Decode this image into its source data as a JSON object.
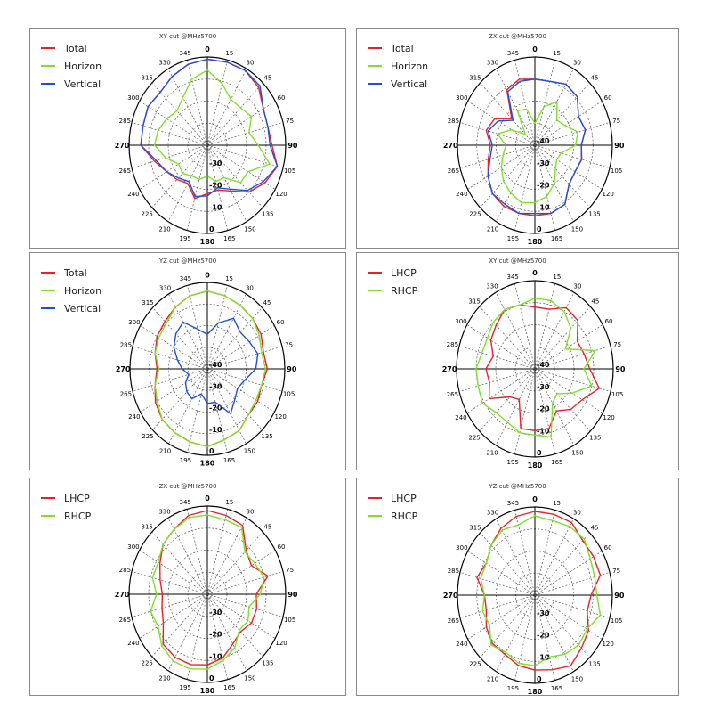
{
  "angle_labels": [
    "0",
    "15",
    "30",
    "45",
    "60",
    "75",
    "90",
    "105",
    "120",
    "135",
    "150",
    "165",
    "180",
    "195",
    "210",
    "225",
    "240",
    "265",
    "270",
    "285",
    "300",
    "315",
    "330",
    "345"
  ],
  "colors": {
    "Total": "#e8202a",
    "Horizon": "#7fe02a",
    "Vertical": "#1f4fd8",
    "LHCP": "#e8202a",
    "RHCP": "#7fe02a"
  },
  "chart_data": [
    {
      "type": "polar-line",
      "title": "XY cut @MHz5700",
      "radial_ticks": [
        "0",
        "-10",
        "-20",
        "-30"
      ],
      "series": [
        {
          "name": "Total",
          "values": [
            -1,
            -1,
            -1,
            -3,
            -7,
            -8,
            -7,
            -3,
            -6,
            -10,
            -16,
            -19,
            -18,
            -15,
            -20,
            -18,
            -16,
            -12,
            -6,
            -6,
            -5,
            -6,
            -4,
            -2
          ]
        },
        {
          "name": "Horizon",
          "values": [
            -6,
            -11,
            -16,
            -16,
            -14,
            -18,
            -14,
            -7,
            -16,
            -16,
            -23,
            -23,
            -26,
            -24,
            -24,
            -22,
            -23,
            -18,
            -13,
            -14,
            -16,
            -18,
            -15,
            -9
          ]
        },
        {
          "name": "Vertical",
          "values": [
            -1,
            -1,
            -1,
            -2,
            -7,
            -8,
            -8,
            -3,
            -7,
            -11,
            -17,
            -20,
            -17,
            -16,
            -21,
            -19,
            -16,
            -13,
            -6,
            -6,
            -5,
            -6,
            -4,
            -2
          ]
        }
      ]
    },
    {
      "type": "polar-line",
      "title": "ZX cut @MHz5700",
      "radial_ticks": [
        "0",
        "-10",
        "-20",
        "-30",
        "-40"
      ],
      "series": [
        {
          "name": "Total",
          "values": [
            -10,
            -10,
            -8,
            -9,
            -14,
            -13,
            -16,
            -15,
            -16,
            -15,
            -9,
            -8,
            -8,
            -8,
            -8,
            -9,
            -12,
            -15,
            -17,
            -14,
            -16,
            -23,
            -11,
            -9
          ]
        },
        {
          "name": "Horizon",
          "values": [
            -30,
            -22,
            -17,
            -24,
            -22,
            -17,
            -19,
            -26,
            -27,
            -25,
            -20,
            -16,
            -14,
            -13,
            -15,
            -17,
            -20,
            -23,
            -25,
            -20,
            -26,
            -33,
            -22,
            -23
          ]
        },
        {
          "name": "Vertical",
          "values": [
            -10,
            -10,
            -8,
            -9,
            -14,
            -13,
            -16,
            -15,
            -16,
            -15,
            -9,
            -8,
            -9,
            -8,
            -9,
            -9,
            -12,
            -16,
            -18,
            -15,
            -18,
            -24,
            -12,
            -10
          ]
        }
      ]
    },
    {
      "type": "polar-line",
      "title": "YZ cut @MHz5700",
      "radial_ticks": [
        "0",
        "-10",
        "-20",
        "-30",
        "-40"
      ],
      "series": [
        {
          "name": "Total",
          "values": [
            -4,
            -5,
            -6,
            -7,
            -8,
            -10,
            -9,
            -11,
            -10,
            -10,
            -7,
            -6,
            -4,
            -5,
            -6,
            -7,
            -9,
            -12,
            -14,
            -12,
            -10,
            -9,
            -7,
            -5
          ]
        },
        {
          "name": "Horizon",
          "values": [
            -4,
            -5,
            -6,
            -7,
            -9,
            -11,
            -10,
            -11,
            -11,
            -10,
            -7,
            -6,
            -4,
            -5,
            -6,
            -7,
            -10,
            -12,
            -15,
            -12,
            -11,
            -10,
            -7,
            -5
          ]
        },
        {
          "name": "Vertical",
          "values": [
            -24,
            -18,
            -13,
            -16,
            -15,
            -13,
            -15,
            -20,
            -22,
            -20,
            -16,
            -24,
            -24,
            -28,
            -24,
            -25,
            -27,
            -30,
            -27,
            -24,
            -20,
            -17,
            -15,
            -21
          ]
        }
      ]
    },
    {
      "type": "polar-line",
      "title": "XY cut @MHz5700",
      "radial_ticks": [
        "0",
        "-10",
        "-20",
        "-30",
        "-40"
      ],
      "series": [
        {
          "name": "LHCP",
          "values": [
            -12,
            -12,
            -8,
            -9,
            -15,
            -14,
            -12,
            -6,
            -12,
            -14,
            -18,
            -12,
            -12,
            -12,
            -24,
            -22,
            -13,
            -16,
            -15,
            -18,
            -14,
            -12,
            -9,
            -10
          ]
        },
        {
          "name": "RHCP",
          "values": [
            -8,
            -8,
            -10,
            -14,
            -22,
            -8,
            -15,
            -10,
            -18,
            -24,
            -22,
            -8,
            -10,
            -10,
            -12,
            -12,
            -9,
            -10,
            -10,
            -12,
            -12,
            -10,
            -9,
            -10
          ]
        }
      ]
    },
    {
      "type": "polar-line",
      "title": "ZX cut @MHz5700",
      "radial_ticks": [
        "0",
        "-10",
        "-20",
        "-30"
      ],
      "series": [
        {
          "name": "LHCP",
          "values": [
            -2,
            -3,
            -4,
            -12,
            -14,
            -8,
            -15,
            -14,
            -14,
            -16,
            -14,
            -10,
            -8,
            -7,
            -7,
            -8,
            -14,
            -16,
            -17,
            -15,
            -12,
            -8,
            -6,
            -3
          ]
        },
        {
          "name": "RHCP",
          "values": [
            -4,
            -5,
            -5,
            -13,
            -12,
            -10,
            -13,
            -18,
            -16,
            -17,
            -12,
            -9,
            -6,
            -5,
            -5,
            -7,
            -11,
            -10,
            -14,
            -11,
            -11,
            -8,
            -6,
            -4
          ]
        }
      ]
    },
    {
      "type": "polar-line",
      "title": "YZ cut @MHz5700",
      "radial_ticks": [
        "0",
        "-10",
        "-20",
        "-30"
      ],
      "series": [
        {
          "name": "LHCP",
          "values": [
            -2,
            -2,
            -2,
            -5,
            -5,
            -5,
            -11,
            -12,
            -8,
            -6,
            -3,
            -5,
            -6,
            -7,
            -9,
            -9,
            -11,
            -14,
            -14,
            -9,
            -11,
            -8,
            -5,
            -3
          ]
        },
        {
          "name": "RHCP",
          "values": [
            -4,
            -5,
            -4,
            -4,
            -7,
            -8,
            -8,
            -5,
            -9,
            -8,
            -9,
            -11,
            -8,
            -8,
            -10,
            -8,
            -13,
            -12,
            -14,
            -11,
            -11,
            -8,
            -6,
            -7
          ]
        }
      ]
    }
  ]
}
